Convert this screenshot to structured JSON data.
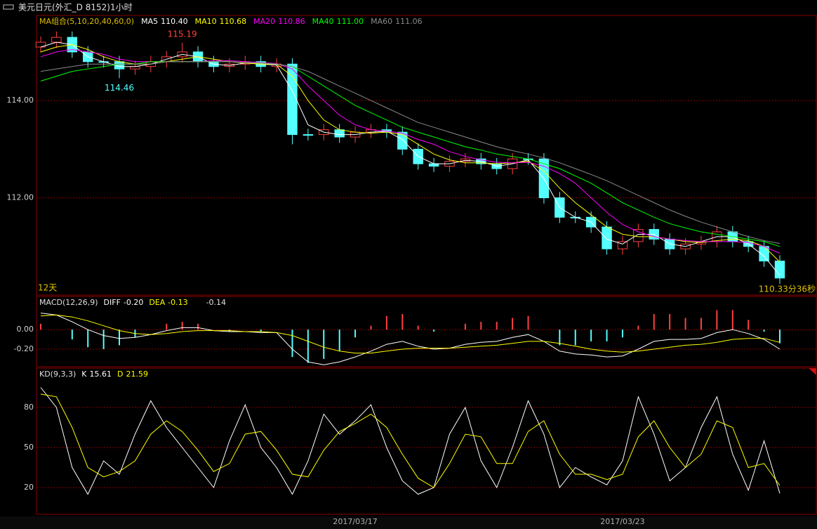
{
  "window_title": "美元日元(外汇_D 8152)1小时",
  "chart_data": [
    {
      "type": "candlestick",
      "legend_title": "MA组合(5,10,20,40,60,0)",
      "ylim": [
        110.0,
        115.75
      ],
      "yticks": [
        {
          "value": 112,
          "label": "112.00"
        },
        {
          "value": 114,
          "label": "114.00"
        }
      ],
      "grid": true,
      "up_color": "#ff4040",
      "down_color": "#54ffff",
      "open": [
        115.1,
        115.2,
        115.3,
        115.0,
        114.8,
        114.8,
        114.65,
        114.7,
        114.8,
        114.9,
        115.0,
        114.8,
        114.7,
        114.75,
        114.8,
        114.7,
        114.75,
        113.3,
        113.3,
        113.4,
        113.25,
        113.35,
        113.4,
        113.35,
        113.0,
        112.7,
        112.65,
        112.75,
        112.8,
        112.7,
        112.6,
        112.8,
        112.8,
        112.0,
        111.6,
        111.6,
        111.4,
        110.95,
        111.1,
        111.35,
        111.15,
        110.95,
        111.05,
        111.1,
        111.3,
        111.1,
        111.0,
        110.7
      ],
      "high": [
        115.32,
        115.42,
        115.42,
        115.12,
        114.92,
        114.92,
        114.82,
        114.92,
        115.02,
        115.19,
        115.12,
        114.92,
        114.87,
        114.92,
        114.92,
        114.87,
        114.87,
        113.42,
        113.52,
        113.52,
        113.47,
        113.52,
        113.52,
        113.47,
        113.12,
        112.82,
        112.87,
        112.92,
        112.92,
        112.82,
        112.92,
        112.92,
        112.92,
        112.12,
        111.72,
        111.72,
        111.52,
        111.22,
        111.47,
        111.47,
        111.27,
        111.17,
        111.22,
        111.42,
        111.42,
        111.22,
        111.12,
        110.82
      ],
      "low": [
        114.98,
        115.08,
        114.88,
        114.68,
        114.68,
        114.46,
        114.53,
        114.58,
        114.68,
        114.78,
        114.68,
        114.58,
        114.58,
        114.63,
        114.58,
        114.58,
        113.1,
        113.18,
        113.18,
        113.13,
        113.13,
        113.23,
        113.23,
        112.88,
        112.58,
        112.53,
        112.53,
        112.63,
        112.58,
        112.48,
        112.48,
        112.68,
        111.88,
        111.48,
        111.48,
        111.28,
        110.83,
        110.83,
        110.98,
        111.03,
        110.83,
        110.83,
        110.93,
        110.98,
        110.98,
        110.88,
        110.58,
        110.23
      ],
      "close": [
        115.2,
        115.3,
        115.0,
        114.8,
        114.8,
        114.65,
        114.7,
        114.8,
        114.9,
        115.0,
        114.8,
        114.7,
        114.75,
        114.8,
        114.7,
        114.75,
        113.3,
        113.3,
        113.4,
        113.25,
        113.35,
        113.4,
        113.35,
        113.0,
        112.7,
        112.65,
        112.75,
        112.8,
        112.7,
        112.6,
        112.8,
        112.8,
        112.0,
        111.6,
        111.6,
        111.4,
        110.95,
        111.1,
        111.35,
        111.15,
        110.95,
        111.05,
        111.1,
        111.3,
        111.1,
        111.0,
        110.7,
        110.35
      ],
      "series": [
        {
          "name": "MA5",
          "legend_value": "110.40",
          "color": "#ffffff",
          "values": [
            115.1,
            115.2,
            115.15,
            114.9,
            114.8,
            114.7,
            114.7,
            114.75,
            114.85,
            114.95,
            114.9,
            114.75,
            114.72,
            114.77,
            114.75,
            114.73,
            114.2,
            113.5,
            113.35,
            113.3,
            113.3,
            113.35,
            113.37,
            113.2,
            112.85,
            112.7,
            112.7,
            112.77,
            112.75,
            112.65,
            112.7,
            112.78,
            112.4,
            111.8,
            111.6,
            111.5,
            111.15,
            111.05,
            111.25,
            111.25,
            111.05,
            111.0,
            111.1,
            111.2,
            111.2,
            111.05,
            110.8,
            110.4
          ]
        },
        {
          "name": "MA10",
          "legend_value": "110.68",
          "color": "#ffff00",
          "values": [
            115.0,
            115.1,
            115.15,
            115.05,
            114.9,
            114.8,
            114.75,
            114.75,
            114.8,
            114.85,
            114.9,
            114.85,
            114.8,
            114.77,
            114.75,
            114.75,
            114.5,
            114.0,
            113.6,
            113.4,
            113.35,
            113.33,
            113.35,
            113.3,
            113.1,
            112.9,
            112.78,
            112.72,
            112.72,
            112.7,
            112.72,
            112.75,
            112.55,
            112.2,
            111.9,
            111.65,
            111.4,
            111.25,
            111.2,
            111.2,
            111.15,
            111.1,
            111.08,
            111.12,
            111.15,
            111.12,
            111.0,
            110.68
          ]
        },
        {
          "name": "MA20",
          "legend_value": "110.86",
          "color": "#ff00ff",
          "values": [
            114.9,
            115.0,
            115.05,
            115.0,
            114.95,
            114.85,
            114.8,
            114.8,
            114.8,
            114.8,
            114.8,
            114.82,
            114.82,
            114.8,
            114.78,
            114.76,
            114.65,
            114.3,
            114.0,
            113.7,
            113.5,
            113.4,
            113.37,
            113.33,
            113.2,
            113.1,
            112.95,
            112.85,
            112.78,
            112.73,
            112.72,
            112.73,
            112.65,
            112.5,
            112.3,
            112.0,
            111.7,
            111.45,
            111.3,
            111.2,
            111.15,
            111.12,
            111.1,
            111.1,
            111.1,
            111.08,
            111.0,
            110.86
          ]
        },
        {
          "name": "MA40",
          "legend_value": "111.00",
          "color": "#00ff00",
          "values": [
            114.4,
            114.5,
            114.6,
            114.65,
            114.7,
            114.75,
            114.75,
            114.8,
            114.8,
            114.8,
            114.8,
            114.8,
            114.8,
            114.78,
            114.77,
            114.75,
            114.7,
            114.5,
            114.3,
            114.1,
            113.9,
            113.75,
            113.6,
            113.45,
            113.35,
            113.25,
            113.15,
            113.05,
            112.98,
            112.9,
            112.85,
            112.8,
            112.7,
            112.6,
            112.45,
            112.3,
            112.1,
            111.9,
            111.75,
            111.6,
            111.47,
            111.38,
            111.3,
            111.25,
            111.2,
            111.15,
            111.1,
            111.0
          ]
        },
        {
          "name": "MA60",
          "legend_value": "111.06",
          "color": "#8a8a8a",
          "values": [
            114.6,
            114.65,
            114.7,
            114.75,
            114.75,
            114.75,
            114.75,
            114.75,
            114.8,
            114.8,
            114.8,
            114.8,
            114.8,
            114.78,
            114.77,
            114.75,
            114.7,
            114.6,
            114.45,
            114.3,
            114.15,
            114.0,
            113.85,
            113.7,
            113.55,
            113.45,
            113.35,
            113.25,
            113.15,
            113.05,
            112.97,
            112.9,
            112.82,
            112.72,
            112.6,
            112.48,
            112.35,
            112.2,
            112.05,
            111.9,
            111.75,
            111.62,
            111.5,
            111.4,
            111.3,
            111.2,
            111.12,
            111.06
          ]
        }
      ],
      "annotations": [
        "115.19",
        "114.46",
        "12天",
        "110.33分36秒"
      ]
    },
    {
      "type": "macd",
      "legend_title": "MACD(12,26,9)",
      "ylim": [
        -0.38,
        0.34
      ],
      "yticks": [
        {
          "value": 0,
          "label": "0.00"
        },
        {
          "value": -0.2,
          "label": "-0.20"
        }
      ],
      "grid": true,
      "series": [
        {
          "name": "DIFF",
          "legend_value": "-0.20",
          "color": "#ffffff",
          "values": [
            0.17,
            0.15,
            0.08,
            0.0,
            -0.06,
            -0.09,
            -0.08,
            -0.05,
            -0.01,
            0.02,
            0.02,
            -0.01,
            -0.02,
            -0.02,
            -0.03,
            -0.03,
            -0.2,
            -0.33,
            -0.36,
            -0.33,
            -0.28,
            -0.22,
            -0.15,
            -0.12,
            -0.17,
            -0.2,
            -0.19,
            -0.15,
            -0.13,
            -0.12,
            -0.08,
            -0.05,
            -0.12,
            -0.22,
            -0.25,
            -0.26,
            -0.28,
            -0.27,
            -0.2,
            -0.12,
            -0.1,
            -0.1,
            -0.09,
            -0.03,
            0.0,
            -0.04,
            -0.1,
            -0.2
          ]
        },
        {
          "name": "DEA",
          "legend_value": "-0.13",
          "color": "#ffff00",
          "values": [
            0.14,
            0.15,
            0.13,
            0.09,
            0.04,
            -0.01,
            -0.04,
            -0.05,
            -0.04,
            -0.02,
            -0.01,
            -0.01,
            -0.01,
            -0.02,
            -0.02,
            -0.03,
            -0.06,
            -0.12,
            -0.18,
            -0.22,
            -0.24,
            -0.24,
            -0.22,
            -0.2,
            -0.19,
            -0.19,
            -0.19,
            -0.18,
            -0.17,
            -0.16,
            -0.14,
            -0.12,
            -0.12,
            -0.14,
            -0.17,
            -0.2,
            -0.22,
            -0.23,
            -0.22,
            -0.2,
            -0.18,
            -0.16,
            -0.15,
            -0.13,
            -0.1,
            -0.09,
            -0.09,
            -0.13
          ]
        }
      ],
      "histogram": {
        "legend_value": "-0.14",
        "up_color": "#ff4040",
        "down_color": "#54ffff",
        "values": [
          0.06,
          0,
          -0.1,
          -0.18,
          -0.2,
          -0.16,
          -0.08,
          0,
          0.06,
          0.08,
          0.06,
          0,
          -0.02,
          0,
          -0.02,
          0,
          -0.28,
          -0.34,
          -0.3,
          -0.22,
          -0.08,
          0.04,
          0.14,
          0.16,
          0.04,
          -0.02,
          0,
          0.06,
          0.08,
          0.08,
          0.12,
          0.14,
          0,
          -0.16,
          -0.16,
          -0.12,
          -0.12,
          -0.08,
          0.04,
          0.16,
          0.16,
          0.12,
          0.12,
          0.2,
          0.2,
          0.1,
          -0.02,
          -0.14
        ]
      }
    },
    {
      "type": "line",
      "legend_title": "KD(9,3,3)",
      "ylim": [
        0,
        109.5
      ],
      "yticks": [
        20,
        50,
        80
      ],
      "grid": true,
      "series": [
        {
          "name": "K",
          "legend_value": "15.61",
          "color": "#ffffff",
          "values": [
            95,
            80,
            35,
            15,
            40,
            30,
            60,
            85,
            65,
            50,
            35,
            20,
            55,
            82,
            50,
            35,
            15,
            40,
            75,
            60,
            70,
            82,
            50,
            25,
            15,
            20,
            60,
            80,
            40,
            20,
            50,
            85,
            60,
            20,
            35,
            28,
            22,
            40,
            88,
            60,
            25,
            35,
            65,
            88,
            45,
            18,
            55,
            15.61
          ]
        },
        {
          "name": "D",
          "legend_value": "21.59",
          "color": "#ffff00",
          "values": [
            90,
            88,
            65,
            35,
            28,
            32,
            40,
            60,
            70,
            62,
            48,
            32,
            38,
            60,
            62,
            48,
            30,
            28,
            48,
            62,
            68,
            75,
            65,
            45,
            27,
            20,
            38,
            60,
            58,
            38,
            38,
            62,
            70,
            45,
            30,
            30,
            26,
            30,
            58,
            70,
            50,
            35,
            45,
            70,
            65,
            35,
            38,
            21.59
          ]
        }
      ],
      "categories": [
        null,
        null,
        null,
        null,
        null,
        null,
        null,
        null,
        null,
        null,
        null,
        null,
        null,
        null,
        null,
        null,
        null,
        null,
        null,
        null,
        "2017/03/17",
        null,
        null,
        null,
        null,
        null,
        null,
        null,
        null,
        null,
        null,
        null,
        null,
        null,
        null,
        null,
        null,
        "2017/03/23",
        null,
        null,
        null,
        null,
        null,
        null,
        null,
        null,
        null,
        null
      ]
    }
  ]
}
